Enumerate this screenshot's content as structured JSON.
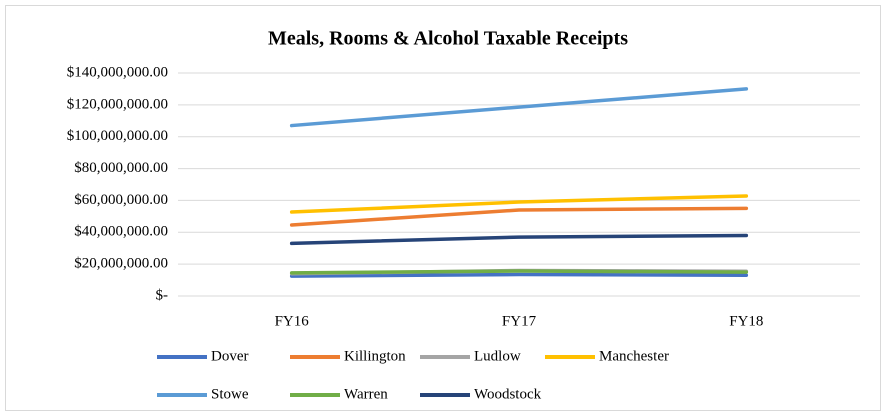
{
  "chart_data": {
    "type": "line",
    "title": "Meals, Rooms & Alcohol Taxable Receipts",
    "categories": [
      "FY16",
      "FY17",
      "FY18"
    ],
    "series": [
      {
        "name": "Dover",
        "color": "#4472c4",
        "values": [
          12500000,
          13500000,
          13000000
        ]
      },
      {
        "name": "Killington",
        "color": "#ed7d31",
        "values": [
          44600000,
          54000000,
          55000000
        ]
      },
      {
        "name": "Ludlow",
        "color": "#a5a5a5",
        "values": [
          14000000,
          16000000,
          15500000
        ]
      },
      {
        "name": "Manchester",
        "color": "#ffc000",
        "values": [
          52700000,
          59000000,
          62800000
        ]
      },
      {
        "name": "Stowe",
        "color": "#5b9bd5",
        "values": [
          107000000,
          118600000,
          130000000
        ]
      },
      {
        "name": "Warren",
        "color": "#70ad47",
        "values": [
          14500000,
          15700000,
          15000000
        ]
      },
      {
        "name": "Woodstock",
        "color": "#264478",
        "values": [
          33000000,
          37000000,
          38000000
        ]
      }
    ],
    "ylim": [
      0,
      140000000
    ],
    "yticks": [
      {
        "value": 0,
        "label": "$-"
      },
      {
        "value": 20000000,
        "label": "$20,000,000.00"
      },
      {
        "value": 40000000,
        "label": "$40,000,000.00"
      },
      {
        "value": 60000000,
        "label": "$60,000,000.00"
      },
      {
        "value": 80000000,
        "label": "$80,000,000.00"
      },
      {
        "value": 100000000,
        "label": "$100,000,000.00"
      },
      {
        "value": 120000000,
        "label": "$120,000,000.00"
      },
      {
        "value": 140000000,
        "label": "$140,000,000.00"
      }
    ],
    "grid": true,
    "legend": "bottom"
  }
}
